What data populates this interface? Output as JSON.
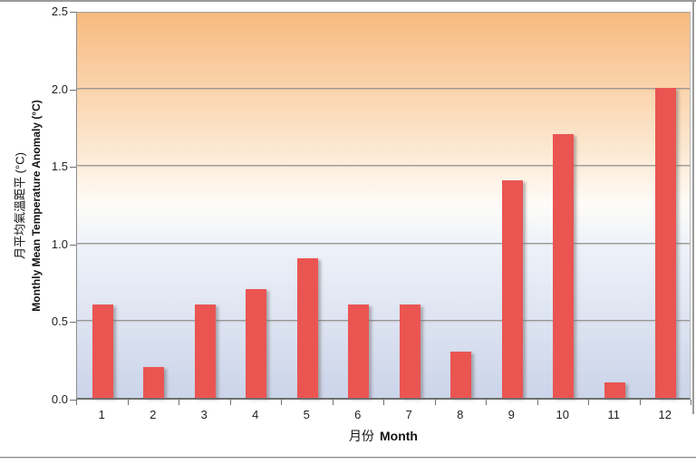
{
  "window": {
    "background": "#ffffff",
    "edge_line_color": "#9a9a9a",
    "bottom_divider_color": "#8f8f8f"
  },
  "chart_data": {
    "type": "bar",
    "title": "",
    "categories": [
      "1",
      "2",
      "3",
      "4",
      "5",
      "6",
      "7",
      "8",
      "9",
      "10",
      "11",
      "12"
    ],
    "values": [
      0.6,
      0.2,
      0.6,
      0.7,
      0.9,
      0.6,
      0.6,
      0.3,
      1.4,
      1.7,
      0.1,
      2.0
    ],
    "xlabel_zh": "月份",
    "xlabel_en": "Month",
    "ylabel_zh": "月平均氣溫距平 (°C)",
    "ylabel_en": "Monthly Mean Temperature Anomaly (°C)",
    "ylim": [
      0,
      2.5
    ],
    "yticks": [
      0,
      0.5,
      1.0,
      1.5,
      2.0,
      2.5
    ],
    "ytick_labels": [
      "0.0",
      "0.5",
      "1.0",
      "1.5",
      "2.0",
      "2.5"
    ],
    "bar_color": "#ea5552",
    "gridline_color": "#999693",
    "axis_line_color": "#6f6f6f",
    "plot_bg_gradient_top": "#f7ba7f",
    "plot_bg_gradient_middle": "#fefcf9",
    "plot_bg_gradient_bottom": "#cbd4ea",
    "grid": "horizontal",
    "legend": "none"
  }
}
